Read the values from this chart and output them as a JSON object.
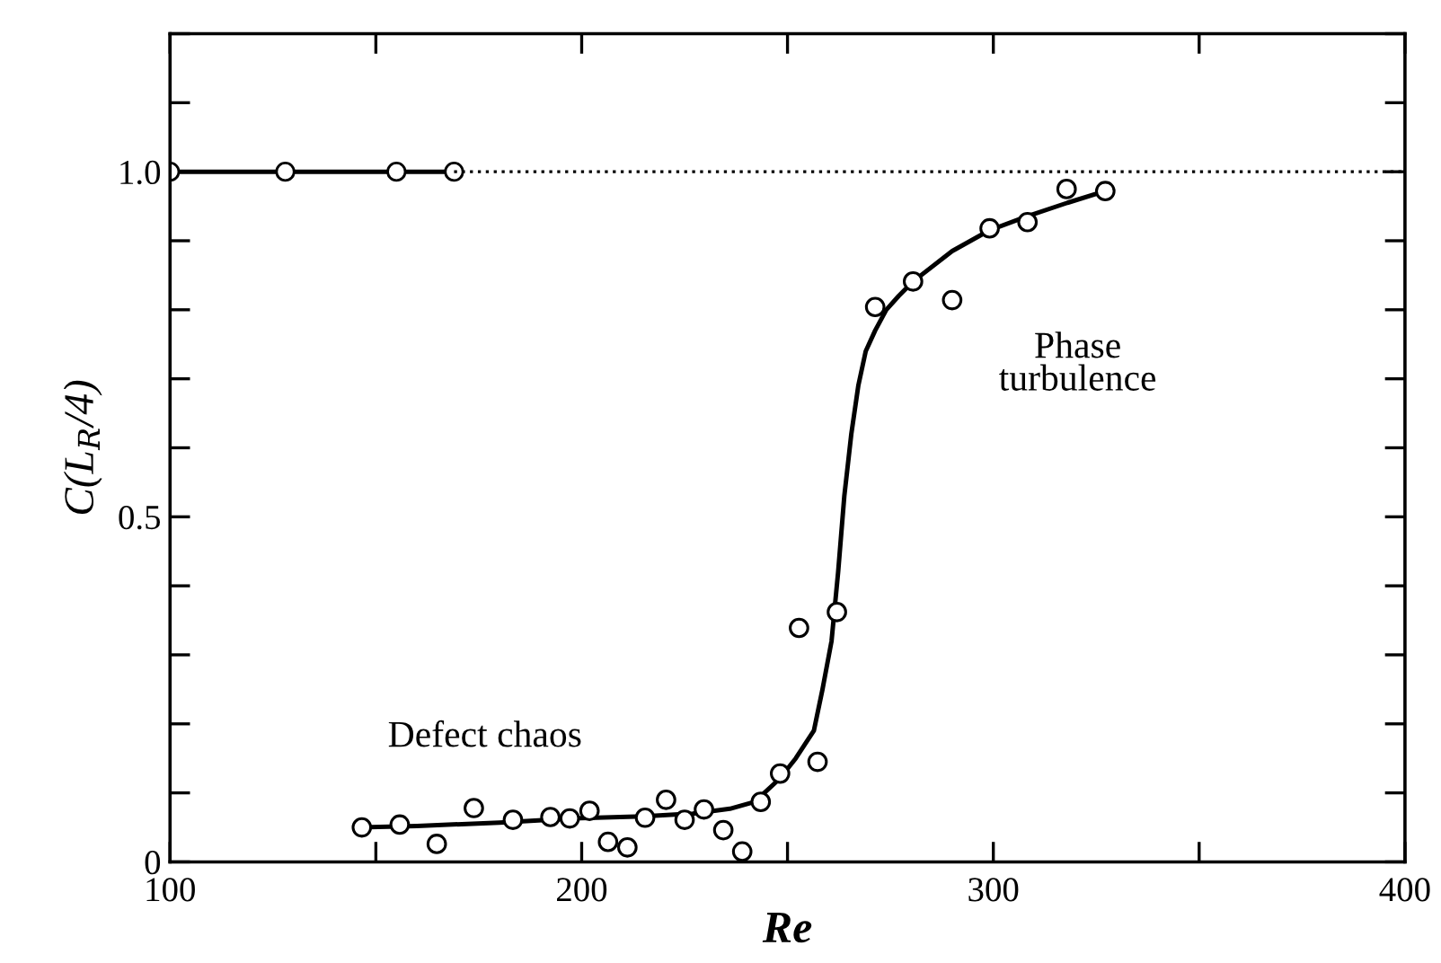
{
  "chart_data": {
    "type": "scatter",
    "xlabel": "Re",
    "ylabel": "C(L$_{R}$/4)",
    "xlim": [
      100,
      400
    ],
    "ylim": [
      0,
      1.2
    ],
    "xticks": [
      100,
      {
        "value": 150,
        "label": null
      },
      200,
      {
        "value": 250,
        "label": null
      },
      300,
      {
        "value": 350,
        "label": null
      },
      400
    ],
    "yticks": [
      0,
      {
        "value": 0.1,
        "label": null
      },
      {
        "value": 0.2,
        "label": null
      },
      {
        "value": 0.3,
        "label": null
      },
      {
        "value": 0.4,
        "label": null
      },
      0.5,
      {
        "value": 0.6,
        "label": null
      },
      {
        "value": 0.7,
        "label": null
      },
      {
        "value": 0.8,
        "label": null
      },
      {
        "value": 0.9,
        "label": null
      },
      {
        "value": 1,
        "label": "1.0"
      },
      {
        "value": 1.1,
        "label": null
      },
      {
        "value": 1.2,
        "label": null
      }
    ],
    "grid": false,
    "legend": false,
    "series": [
      {
        "type": "line",
        "color": "#000000",
        "marker": "circle",
        "line_style": "solid",
        "x": [
          100,
          128,
          155,
          169
        ],
        "values": [
          1.0,
          1.0,
          1.0,
          1.0
        ]
      },
      {
        "type": "line",
        "color": "#000000",
        "marker": "none",
        "line_style": "dotted",
        "x": [
          169,
          400
        ],
        "values": [
          1.0,
          1.0
        ]
      },
      {
        "type": "line",
        "color": "#000000",
        "marker": "none",
        "line_style": "solid",
        "x": [
          146.6,
          160,
          180,
          198,
          215,
          227,
          236,
          242,
          248,
          252,
          256.4,
          258.5,
          260.7,
          262.3,
          263.8,
          265.5,
          267.2,
          269,
          271.3,
          274,
          277,
          280.5,
          290,
          299,
          308,
          318,
          327.2
        ],
        "values": [
          0.05,
          0.052,
          0.057,
          0.063,
          0.066,
          0.07,
          0.077,
          0.087,
          0.12,
          0.15,
          0.19,
          0.25,
          0.32,
          0.42,
          0.53,
          0.62,
          0.69,
          0.74,
          0.77,
          0.8,
          0.82,
          0.841,
          0.885,
          0.915,
          0.935,
          0.955,
          0.972
        ]
      },
      {
        "color": "#000000",
        "marker": "circle",
        "x": [
          146.6,
          155.8,
          164.8,
          173.8,
          183.3,
          192.4,
          197.1,
          201.9,
          206.4,
          211.1,
          215.4,
          220.5,
          225,
          229.7,
          234.4,
          239,
          243.5,
          248.2,
          252.8,
          257.3,
          262,
          271.3,
          280.5,
          290,
          299.1,
          308.3,
          317.8,
          327.2
        ],
        "values": [
          0.05,
          0.054,
          0.026,
          0.078,
          0.061,
          0.065,
          0.063,
          0.074,
          0.029,
          0.021,
          0.064,
          0.09,
          0.061,
          0.076,
          0.046,
          0.015,
          0.087,
          0.128,
          0.339,
          0.145,
          0.362,
          0.804,
          0.841,
          0.814,
          0.918,
          0.927,
          0.975,
          0.972
        ]
      }
    ],
    "annotations": [
      "Defect chaos",
      "Phase\nturbulence"
    ]
  }
}
